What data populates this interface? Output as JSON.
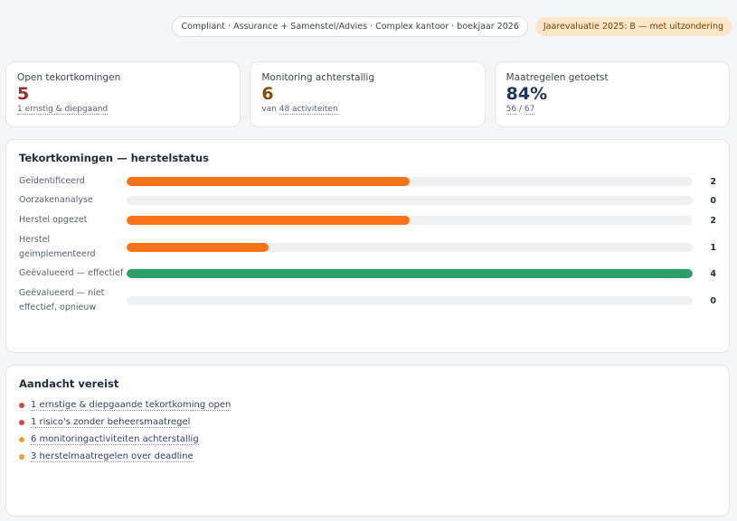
{
  "header": {
    "context": "Compliant · Assurance + Samenstel/Advies · Complex kantoor · boekjaar 2026",
    "evaluation_badge": "Jaarevaluatie 2025: B — met uitzondering"
  },
  "kpis": [
    {
      "label": "Open tekortkomingen",
      "value": "5",
      "sub": "1 ernstig & diepgaand",
      "color": "#9b2c2c"
    },
    {
      "label": "Monitoring achterstallig",
      "value": "6",
      "sub_prefix": "van ",
      "sub_link": "48 activiteiten",
      "color": "#8a4b00"
    },
    {
      "label": "Maatregelen getoetst",
      "value": "84%",
      "sub_a": "56",
      "sub_sep": " / ",
      "sub_b": "67",
      "color": "#1f3557"
    }
  ],
  "status": {
    "title": "Tekortkomingen — herstelstatus",
    "max": 4,
    "rows": [
      {
        "label": "Geïdentificeerd",
        "count": 2,
        "color": "#f97316"
      },
      {
        "label": "Oorzakenanalyse",
        "count": 0,
        "color": "#f97316"
      },
      {
        "label": "Herstel opgezet",
        "count": 2,
        "color": "#f97316"
      },
      {
        "label": "Herstel geïmplementeerd",
        "count": 1,
        "color": "#f97316"
      },
      {
        "label": "Geëvalueerd — effectief",
        "count": 4,
        "color": "#2e9e69"
      },
      {
        "label": "Geëvalueerd — niet effectief, opnieuw",
        "count": 0,
        "color": "#f97316"
      }
    ]
  },
  "attention": {
    "title": "Aandacht vereist",
    "items": [
      {
        "text": "1 ernstige & diepgaande tekortkoming open",
        "color": "#d64545"
      },
      {
        "text": "1 risico's zonder beheersmaatregel",
        "color": "#d64545"
      },
      {
        "text": "6 monitoringactiviteiten achterstallig",
        "color": "#e5a12a"
      },
      {
        "text": "3 herstelmaatregelen over deadline",
        "color": "#e5a12a"
      }
    ]
  }
}
